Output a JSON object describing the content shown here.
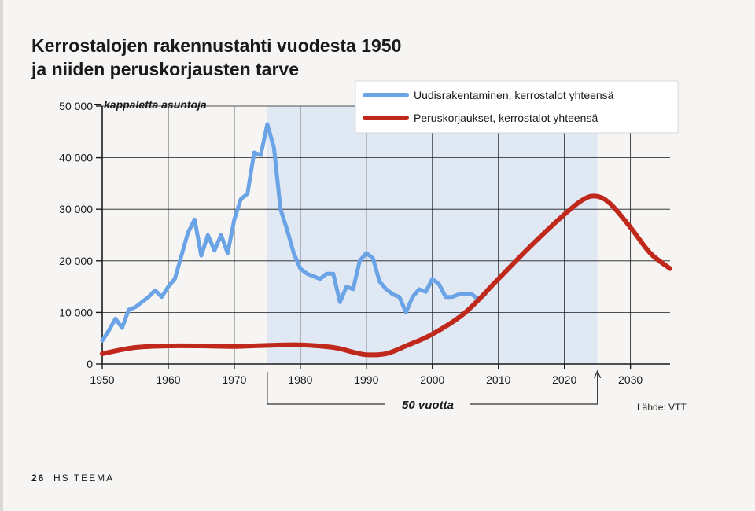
{
  "page": {
    "footer_page_number": "26",
    "footer_publication": "HS TEEMA"
  },
  "colors": {
    "uudisrakentaminen": "#6aa3e6",
    "peruskorjaukset": "#c0281c",
    "shaded_band": "#dfe8f3",
    "grid": "#1a1a1a"
  },
  "chart_data": {
    "type": "line",
    "title_lines": [
      "Kerrostalojen rakennustahti vuodesta 1950",
      "ja niiden peruskorjausten tarve"
    ],
    "unit_label": "kappaletta asuntoja",
    "source": "Lähde: VTT",
    "annotation": "50 vuotta",
    "x_range": [
      1950,
      2036
    ],
    "y_range": [
      0,
      50000
    ],
    "x_ticks": [
      {
        "value": 1950,
        "label": "1950"
      },
      {
        "value": 1960,
        "label": "1960"
      },
      {
        "value": 1970,
        "label": "1970"
      },
      {
        "value": 1980,
        "label": "1980"
      },
      {
        "value": 1990,
        "label": "1990"
      },
      {
        "value": 2000,
        "label": "2000"
      },
      {
        "value": 2010,
        "label": "2010"
      },
      {
        "value": 2020,
        "label": "2020"
      },
      {
        "value": 2030,
        "label": "2030"
      }
    ],
    "y_ticks": [
      {
        "value": 0,
        "label": "0"
      },
      {
        "value": 10000,
        "label": "10 000"
      },
      {
        "value": 20000,
        "label": "20 000"
      },
      {
        "value": 30000,
        "label": "30 000"
      },
      {
        "value": 40000,
        "label": "40 000"
      },
      {
        "value": 50000,
        "label": "50 000"
      }
    ],
    "shaded_period": [
      1975,
      2025
    ],
    "legend_position": "top-right",
    "grid": true,
    "series": [
      {
        "name": "Uudisrakentaminen, kerrostalot yhteensä",
        "color": "#6aa3e6",
        "points": [
          [
            1950,
            4500
          ],
          [
            1951,
            6500
          ],
          [
            1952,
            8800
          ],
          [
            1953,
            7000
          ],
          [
            1954,
            10500
          ],
          [
            1955,
            11000
          ],
          [
            1956,
            12000
          ],
          [
            1957,
            13000
          ],
          [
            1958,
            14300
          ],
          [
            1959,
            13000
          ],
          [
            1960,
            15000
          ],
          [
            1961,
            16500
          ],
          [
            1962,
            21000
          ],
          [
            1963,
            25500
          ],
          [
            1964,
            28000
          ],
          [
            1965,
            21000
          ],
          [
            1966,
            25000
          ],
          [
            1967,
            22000
          ],
          [
            1968,
            25000
          ],
          [
            1969,
            21500
          ],
          [
            1970,
            28000
          ],
          [
            1971,
            32000
          ],
          [
            1972,
            33000
          ],
          [
            1973,
            41000
          ],
          [
            1974,
            40500
          ],
          [
            1975,
            46500
          ],
          [
            1976,
            42000
          ],
          [
            1977,
            30000
          ],
          [
            1978,
            26000
          ],
          [
            1979,
            21500
          ],
          [
            1980,
            18500
          ],
          [
            1981,
            17500
          ],
          [
            1982,
            17000
          ],
          [
            1983,
            16500
          ],
          [
            1984,
            17500
          ],
          [
            1985,
            17500
          ],
          [
            1986,
            12000
          ],
          [
            1987,
            15000
          ],
          [
            1988,
            14500
          ],
          [
            1989,
            20000
          ],
          [
            1990,
            21500
          ],
          [
            1991,
            20500
          ],
          [
            1992,
            16000
          ],
          [
            1993,
            14500
          ],
          [
            1994,
            13500
          ],
          [
            1995,
            13000
          ],
          [
            1996,
            10000
          ],
          [
            1997,
            13000
          ],
          [
            1998,
            14500
          ],
          [
            1999,
            14000
          ],
          [
            2000,
            16500
          ],
          [
            2001,
            15500
          ],
          [
            2002,
            13000
          ],
          [
            2003,
            13000
          ],
          [
            2004,
            13500
          ],
          [
            2005,
            13500
          ],
          [
            2006,
            13500
          ],
          [
            2007,
            12500
          ],
          [
            2008,
            13500
          ]
        ]
      },
      {
        "name": "Peruskorjaukset, kerrostalot yhteensä",
        "color": "#c0281c",
        "points": [
          [
            1950,
            2000
          ],
          [
            1955,
            3200
          ],
          [
            1960,
            3500
          ],
          [
            1965,
            3500
          ],
          [
            1970,
            3400
          ],
          [
            1975,
            3600
          ],
          [
            1980,
            3700
          ],
          [
            1985,
            3200
          ],
          [
            1988,
            2300
          ],
          [
            1990,
            1800
          ],
          [
            1993,
            2000
          ],
          [
            1996,
            3500
          ],
          [
            2000,
            5800
          ],
          [
            2005,
            10000
          ],
          [
            2010,
            16500
          ],
          [
            2015,
            23000
          ],
          [
            2020,
            29000
          ],
          [
            2023,
            32000
          ],
          [
            2025,
            32500
          ],
          [
            2027,
            31000
          ],
          [
            2030,
            26500
          ],
          [
            2033,
            21500
          ],
          [
            2036,
            18500
          ]
        ]
      }
    ]
  }
}
